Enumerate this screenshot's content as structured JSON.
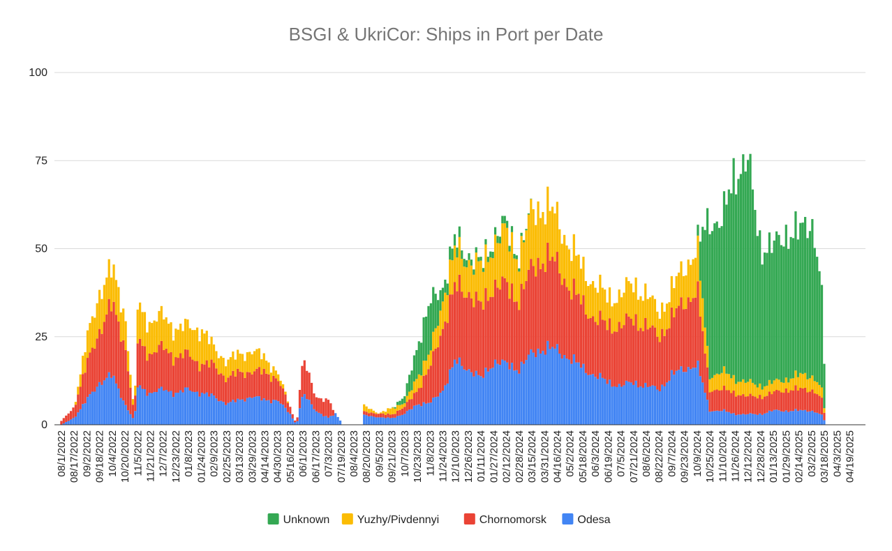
{
  "chart_data": {
    "type": "bar",
    "stacked": true,
    "title": "BSGI & UkriCor: Ships in Port per Date",
    "xlabel": "",
    "ylabel": "",
    "ylim": [
      0,
      100
    ],
    "yticks": [
      0,
      25,
      50,
      75,
      100
    ],
    "grid": true,
    "legend_position": "bottom",
    "x_range": [
      "2022-08-01",
      "2025-04-30"
    ],
    "x_tick_labels": [
      "08/1/2022",
      "08/17/2022",
      "09/2/2022",
      "09/18/2022",
      "10/4/2022",
      "10/20/2022",
      "11/5/2022",
      "11/21/2022",
      "12/7/2022",
      "12/23/2022",
      "01/8/2023",
      "01/24/2023",
      "02/9/2023",
      "02/25/2023",
      "03/13/2023",
      "03/29/2023",
      "04/14/2023",
      "04/30/2023",
      "05/16/2023",
      "06/1/2023",
      "06/17/2023",
      "07/3/2023",
      "07/19/2023",
      "08/4/2023",
      "08/20/2023",
      "09/5/2023",
      "09/21/2023",
      "10/7/2023",
      "10/23/2023",
      "11/8/2023",
      "11/24/2023",
      "12/10/2023",
      "12/26/2023",
      "01/11/2024",
      "01/27/2024",
      "02/12/2024",
      "02/28/2024",
      "03/15/2024",
      "03/31/2024",
      "04/16/2024",
      "05/2/2024",
      "05/18/2024",
      "06/3/2024",
      "06/19/2024",
      "07/5/2024",
      "07/21/2024",
      "08/6/2024",
      "08/22/2024",
      "09/7/2024",
      "09/23/2024",
      "10/9/2024",
      "10/25/2024",
      "11/10/2024",
      "11/26/2024",
      "12/12/2024",
      "12/28/2024",
      "01/13/2025",
      "01/29/2025",
      "02/14/2025",
      "03/2/2025",
      "03/18/2025",
      "04/3/2025",
      "04/19/2025"
    ],
    "series": [
      {
        "name": "Unknown",
        "color": "#34a853"
      },
      {
        "name": "Yuzhy/Pivdennyi",
        "color": "#fbbc04"
      },
      {
        "name": "Chornomorsk",
        "color": "#ea4335"
      },
      {
        "name": "Odesa",
        "color": "#4285f4"
      }
    ],
    "stack_order_bottom_to_top": [
      "Odesa",
      "Chornomorsk",
      "Yuzhy/Pivdennyi",
      "Unknown"
    ],
    "data_points": [
      {
        "date": "2022-08-01",
        "Odesa": 0,
        "Chornomorsk": 1,
        "Yuzhy/Pivdennyi": 0,
        "Unknown": 0
      },
      {
        "date": "2022-08-17",
        "Odesa": 2,
        "Chornomorsk": 3,
        "Yuzhy/Pivdennyi": 0,
        "Unknown": 0
      },
      {
        "date": "2022-09-02",
        "Odesa": 7,
        "Chornomorsk": 10,
        "Yuzhy/Pivdennyi": 7,
        "Unknown": 0
      },
      {
        "date": "2022-09-18",
        "Odesa": 12,
        "Chornomorsk": 15,
        "Yuzhy/Pivdennyi": 11,
        "Unknown": 0
      },
      {
        "date": "2022-10-04",
        "Odesa": 14,
        "Chornomorsk": 20,
        "Yuzhy/Pivdennyi": 10,
        "Unknown": 0
      },
      {
        "date": "2022-10-20",
        "Odesa": 6,
        "Chornomorsk": 17,
        "Yuzhy/Pivdennyi": 9,
        "Unknown": 0
      },
      {
        "date": "2022-11-01",
        "Odesa": 1,
        "Chornomorsk": 1,
        "Yuzhy/Pivdennyi": 0,
        "Unknown": 0
      },
      {
        "date": "2022-11-05",
        "Odesa": 11,
        "Chornomorsk": 13,
        "Yuzhy/Pivdennyi": 10,
        "Unknown": 0
      },
      {
        "date": "2022-11-21",
        "Odesa": 9,
        "Chornomorsk": 11,
        "Yuzhy/Pivdennyi": 9,
        "Unknown": 0
      },
      {
        "date": "2022-12-07",
        "Odesa": 10,
        "Chornomorsk": 12,
        "Yuzhy/Pivdennyi": 9,
        "Unknown": 0
      },
      {
        "date": "2022-12-23",
        "Odesa": 9,
        "Chornomorsk": 10,
        "Yuzhy/Pivdennyi": 8,
        "Unknown": 0
      },
      {
        "date": "2023-01-08",
        "Odesa": 10,
        "Chornomorsk": 10,
        "Yuzhy/Pivdennyi": 8,
        "Unknown": 0
      },
      {
        "date": "2023-01-24",
        "Odesa": 9,
        "Chornomorsk": 8,
        "Yuzhy/Pivdennyi": 10,
        "Unknown": 0
      },
      {
        "date": "2023-02-09",
        "Odesa": 8,
        "Chornomorsk": 9,
        "Yuzhy/Pivdennyi": 5,
        "Unknown": 0
      },
      {
        "date": "2023-02-25",
        "Odesa": 6,
        "Chornomorsk": 7,
        "Yuzhy/Pivdennyi": 5,
        "Unknown": 0
      },
      {
        "date": "2023-03-13",
        "Odesa": 7,
        "Chornomorsk": 8,
        "Yuzhy/Pivdennyi": 5,
        "Unknown": 0
      },
      {
        "date": "2023-03-29",
        "Odesa": 8,
        "Chornomorsk": 7,
        "Yuzhy/Pivdennyi": 6,
        "Unknown": 0
      },
      {
        "date": "2023-04-14",
        "Odesa": 7,
        "Chornomorsk": 8,
        "Yuzhy/Pivdennyi": 4,
        "Unknown": 0
      },
      {
        "date": "2023-04-30",
        "Odesa": 7,
        "Chornomorsk": 6,
        "Yuzhy/Pivdennyi": 2,
        "Unknown": 0
      },
      {
        "date": "2023-05-16",
        "Odesa": 3,
        "Chornomorsk": 2,
        "Yuzhy/Pivdennyi": 0,
        "Unknown": 0
      },
      {
        "date": "2023-05-24",
        "Odesa": 0,
        "Chornomorsk": 0,
        "Yuzhy/Pivdennyi": 0,
        "Unknown": 0
      },
      {
        "date": "2023-06-01",
        "Odesa": 9,
        "Chornomorsk": 10,
        "Yuzhy/Pivdennyi": 0,
        "Unknown": 0
      },
      {
        "date": "2023-06-17",
        "Odesa": 4,
        "Chornomorsk": 4,
        "Yuzhy/Pivdennyi": 0,
        "Unknown": 0
      },
      {
        "date": "2023-07-03",
        "Odesa": 2,
        "Chornomorsk": 5,
        "Yuzhy/Pivdennyi": 0,
        "Unknown": 0
      },
      {
        "date": "2023-07-12",
        "Odesa": 3,
        "Chornomorsk": 0,
        "Yuzhy/Pivdennyi": 0,
        "Unknown": 0
      },
      {
        "date": "2023-07-19",
        "Odesa": 1,
        "Chornomorsk": 0,
        "Yuzhy/Pivdennyi": 0,
        "Unknown": 0
      },
      {
        "date": "2023-07-21",
        "Odesa": 0,
        "Chornomorsk": 0,
        "Yuzhy/Pivdennyi": 0,
        "Unknown": 0
      },
      {
        "date": "2023-08-14",
        "Odesa": 0,
        "Chornomorsk": 0,
        "Yuzhy/Pivdennyi": 0,
        "Unknown": 0
      },
      {
        "date": "2023-08-16",
        "Odesa": 3,
        "Chornomorsk": 1,
        "Yuzhy/Pivdennyi": 2,
        "Unknown": 0
      },
      {
        "date": "2023-09-05",
        "Odesa": 2,
        "Chornomorsk": 1,
        "Yuzhy/Pivdennyi": 0,
        "Unknown": 0
      },
      {
        "date": "2023-09-21",
        "Odesa": 2,
        "Chornomorsk": 1,
        "Yuzhy/Pivdennyi": 2,
        "Unknown": 0
      },
      {
        "date": "2023-10-07",
        "Odesa": 3,
        "Chornomorsk": 2,
        "Yuzhy/Pivdennyi": 1,
        "Unknown": 2
      },
      {
        "date": "2023-10-23",
        "Odesa": 6,
        "Chornomorsk": 4,
        "Yuzhy/Pivdennyi": 4,
        "Unknown": 9
      },
      {
        "date": "2023-11-08",
        "Odesa": 6,
        "Chornomorsk": 10,
        "Yuzhy/Pivdennyi": 4,
        "Unknown": 14
      },
      {
        "date": "2023-11-24",
        "Odesa": 10,
        "Chornomorsk": 18,
        "Yuzhy/Pivdennyi": 8,
        "Unknown": 4
      },
      {
        "date": "2023-12-10",
        "Odesa": 18,
        "Chornomorsk": 21,
        "Yuzhy/Pivdennyi": 10,
        "Unknown": 3
      },
      {
        "date": "2023-12-26",
        "Odesa": 16,
        "Chornomorsk": 22,
        "Yuzhy/Pivdennyi": 9,
        "Unknown": 2
      },
      {
        "date": "2024-01-11",
        "Odesa": 13,
        "Chornomorsk": 20,
        "Yuzhy/Pivdennyi": 11,
        "Unknown": 1
      },
      {
        "date": "2024-01-27",
        "Odesa": 18,
        "Chornomorsk": 22,
        "Yuzhy/Pivdennyi": 12,
        "Unknown": 2
      },
      {
        "date": "2024-02-12",
        "Odesa": 17,
        "Chornomorsk": 22,
        "Yuzhy/Pivdennyi": 15,
        "Unknown": 2
      },
      {
        "date": "2024-02-28",
        "Odesa": 16,
        "Chornomorsk": 20,
        "Yuzhy/Pivdennyi": 12,
        "Unknown": 1
      },
      {
        "date": "2024-03-15",
        "Odesa": 20,
        "Chornomorsk": 24,
        "Yuzhy/Pivdennyi": 16,
        "Unknown": 0
      },
      {
        "date": "2024-03-31",
        "Odesa": 22,
        "Chornomorsk": 26,
        "Yuzhy/Pivdennyi": 15,
        "Unknown": 0
      },
      {
        "date": "2024-04-16",
        "Odesa": 21,
        "Chornomorsk": 24,
        "Yuzhy/Pivdennyi": 13,
        "Unknown": 0
      },
      {
        "date": "2024-05-02",
        "Odesa": 19,
        "Chornomorsk": 20,
        "Yuzhy/Pivdennyi": 12,
        "Unknown": 0
      },
      {
        "date": "2024-05-18",
        "Odesa": 16,
        "Chornomorsk": 18,
        "Yuzhy/Pivdennyi": 10,
        "Unknown": 0
      },
      {
        "date": "2024-06-03",
        "Odesa": 14,
        "Chornomorsk": 16,
        "Yuzhy/Pivdennyi": 10,
        "Unknown": 0
      },
      {
        "date": "2024-06-19",
        "Odesa": 12,
        "Chornomorsk": 16,
        "Yuzhy/Pivdennyi": 8,
        "Unknown": 0
      },
      {
        "date": "2024-07-05",
        "Odesa": 11,
        "Chornomorsk": 17,
        "Yuzhy/Pivdennyi": 9,
        "Unknown": 0
      },
      {
        "date": "2024-07-21",
        "Odesa": 12,
        "Chornomorsk": 18,
        "Yuzhy/Pivdennyi": 10,
        "Unknown": 0
      },
      {
        "date": "2024-08-06",
        "Odesa": 11,
        "Chornomorsk": 17,
        "Yuzhy/Pivdennyi": 9,
        "Unknown": 0
      },
      {
        "date": "2024-08-22",
        "Odesa": 10,
        "Chornomorsk": 15,
        "Yuzhy/Pivdennyi": 7,
        "Unknown": 0
      },
      {
        "date": "2024-09-07",
        "Odesa": 14,
        "Chornomorsk": 16,
        "Yuzhy/Pivdennyi": 8,
        "Unknown": 0
      },
      {
        "date": "2024-09-23",
        "Odesa": 16,
        "Chornomorsk": 19,
        "Yuzhy/Pivdennyi": 10,
        "Unknown": 0
      },
      {
        "date": "2024-10-09",
        "Odesa": 17,
        "Chornomorsk": 21,
        "Yuzhy/Pivdennyi": 12,
        "Unknown": 0
      },
      {
        "date": "2024-10-18",
        "Odesa": 10,
        "Chornomorsk": 12,
        "Yuzhy/Pivdennyi": 8,
        "Unknown": 25
      },
      {
        "date": "2024-10-25",
        "Odesa": 4,
        "Chornomorsk": 6,
        "Yuzhy/Pivdennyi": 4,
        "Unknown": 45
      },
      {
        "date": "2024-11-10",
        "Odesa": 4,
        "Chornomorsk": 6,
        "Yuzhy/Pivdennyi": 5,
        "Unknown": 42
      },
      {
        "date": "2024-11-26",
        "Odesa": 3,
        "Chornomorsk": 6,
        "Yuzhy/Pivdennyi": 4,
        "Unknown": 60
      },
      {
        "date": "2024-12-12",
        "Odesa": 3,
        "Chornomorsk": 5,
        "Yuzhy/Pivdennyi": 4,
        "Unknown": 62
      },
      {
        "date": "2024-12-28",
        "Odesa": 3,
        "Chornomorsk": 5,
        "Yuzhy/Pivdennyi": 3,
        "Unknown": 40
      },
      {
        "date": "2025-01-13",
        "Odesa": 4,
        "Chornomorsk": 5,
        "Yuzhy/Pivdennyi": 3,
        "Unknown": 38
      },
      {
        "date": "2025-01-29",
        "Odesa": 4,
        "Chornomorsk": 6,
        "Yuzhy/Pivdennyi": 3,
        "Unknown": 42
      },
      {
        "date": "2025-02-14",
        "Odesa": 4,
        "Chornomorsk": 6,
        "Yuzhy/Pivdennyi": 4,
        "Unknown": 40
      },
      {
        "date": "2025-03-02",
        "Odesa": 4,
        "Chornomorsk": 6,
        "Yuzhy/Pivdennyi": 4,
        "Unknown": 45
      },
      {
        "date": "2025-03-14",
        "Odesa": 3,
        "Chornomorsk": 5,
        "Yuzhy/Pivdennyi": 3,
        "Unknown": 30
      },
      {
        "date": "2025-03-21",
        "Odesa": 0,
        "Chornomorsk": 0,
        "Yuzhy/Pivdennyi": 0,
        "Unknown": 0
      },
      {
        "date": "2025-04-30",
        "Odesa": 0,
        "Chornomorsk": 0,
        "Yuzhy/Pivdennyi": 0,
        "Unknown": 0
      }
    ]
  }
}
